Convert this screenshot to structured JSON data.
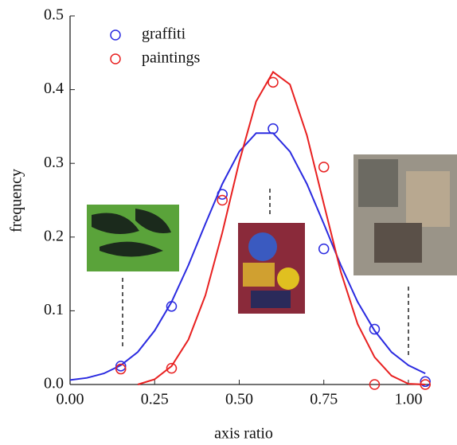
{
  "chart_data": {
    "type": "scatter",
    "x_label": "axis ratio",
    "y_label": "frequency",
    "xlim": [
      0,
      1.066
    ],
    "ylim": [
      0,
      0.5
    ],
    "xticks": [
      {
        "value": 0,
        "label": "0.00"
      },
      {
        "value": 0.25,
        "label": "0.25"
      },
      {
        "value": 0.5,
        "label": "0.50"
      },
      {
        "value": 0.75,
        "label": "0.75"
      },
      {
        "value": 1,
        "label": "1.00"
      }
    ],
    "yticks": [
      {
        "value": 0,
        "label": "0.0"
      },
      0.1,
      0.2,
      0.3,
      0.4,
      0.5
    ],
    "legend": "upper left",
    "series": [
      {
        "name": "graffiti",
        "color": "#2a2ae0",
        "x": [
          0.15,
          0.3,
          0.45,
          0.6,
          0.75,
          0.9,
          1.05
        ],
        "values": [
          0.025,
          0.106,
          0.258,
          0.347,
          0.184,
          0.075,
          0.004
        ],
        "fit_x": [
          0,
          0.05,
          0.1,
          0.15,
          0.2,
          0.25,
          0.3,
          0.35,
          0.4,
          0.45,
          0.5,
          0.55,
          0.6,
          0.65,
          0.7,
          0.75,
          0.8,
          0.85,
          0.9,
          0.95,
          1,
          1.05
        ],
        "fit_values": [
          0.006,
          0.009,
          0.015,
          0.026,
          0.044,
          0.073,
          0.112,
          0.162,
          0.218,
          0.272,
          0.316,
          0.341,
          0.341,
          0.316,
          0.272,
          0.218,
          0.162,
          0.112,
          0.073,
          0.044,
          0.026,
          0.015
        ]
      },
      {
        "name": "paintings",
        "color": "#e82020",
        "x": [
          0.15,
          0.3,
          0.45,
          0.6,
          0.75,
          0.9,
          1.05
        ],
        "values": [
          0.021,
          0.022,
          0.25,
          0.41,
          0.295,
          0,
          0
        ],
        "fit_x": [
          0.2,
          0.25,
          0.3,
          0.35,
          0.4,
          0.45,
          0.5,
          0.55,
          0.6,
          0.65,
          0.7,
          0.75,
          0.8,
          0.85,
          0.9,
          0.95,
          1,
          1.05
        ],
        "fit_values": [
          0,
          0.007,
          0.025,
          0.061,
          0.121,
          0.206,
          0.302,
          0.384,
          0.424,
          0.407,
          0.338,
          0.245,
          0.153,
          0.082,
          0.037,
          0.012,
          0.001,
          0
        ]
      }
    ]
  }
}
